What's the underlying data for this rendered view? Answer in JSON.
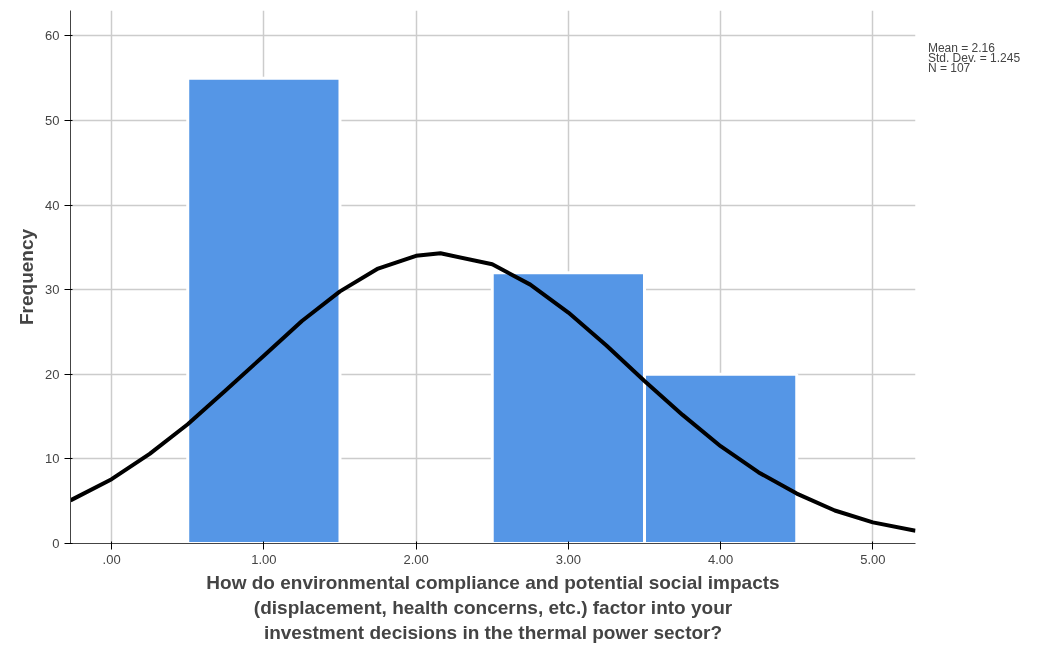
{
  "chart_data": {
    "type": "histogram",
    "xlabel": "How do environmental compliance and potential social impacts (displacement, health concerns, etc.) factor into your investment decisions in the thermal power sector?",
    "ylabel": "Frequency",
    "bins": [
      0.5,
      1.5,
      2.5,
      3.5,
      4.5
    ],
    "values": [
      55,
      0,
      32,
      20
    ],
    "color": "#5596e6",
    "series": [
      {
        "type": "line",
        "color": "#000000",
        "x": [
          -0.27,
          0,
          0.25,
          0.5,
          0.75,
          1,
          1.25,
          1.5,
          1.75,
          2,
          2.16,
          2.5,
          2.75,
          3,
          3.25,
          3.5,
          3.75,
          4,
          4.25,
          4.5,
          4.75,
          5,
          5.28
        ],
        "values": [
          5.1,
          7.6,
          10.6,
          14.1,
          18.1,
          22.2,
          26.3,
          29.8,
          32.5,
          34.0,
          34.3,
          33.0,
          30.6,
          27.3,
          23.4,
          19.2,
          15.2,
          11.5,
          8.4,
          5.9,
          3.9,
          2.5,
          1.5
        ]
      }
    ],
    "xlim": [
      -0.27,
      5.28
    ],
    "ylim": [
      0,
      63
    ],
    "xticks": [
      {
        "value": 0,
        "label": ".00"
      },
      {
        "value": 1,
        "label": "1.00"
      },
      {
        "value": 2,
        "label": "2.00"
      },
      {
        "value": 3,
        "label": "3.00"
      },
      {
        "value": 4,
        "label": "4.00"
      },
      {
        "value": 5,
        "label": "5.00"
      }
    ],
    "yticks": [
      0,
      10,
      20,
      30,
      40,
      50,
      60
    ],
    "grid": true,
    "annotations": [
      "Mean = 2.16",
      "Std. Dev. = 1.245",
      "N = 107"
    ]
  }
}
